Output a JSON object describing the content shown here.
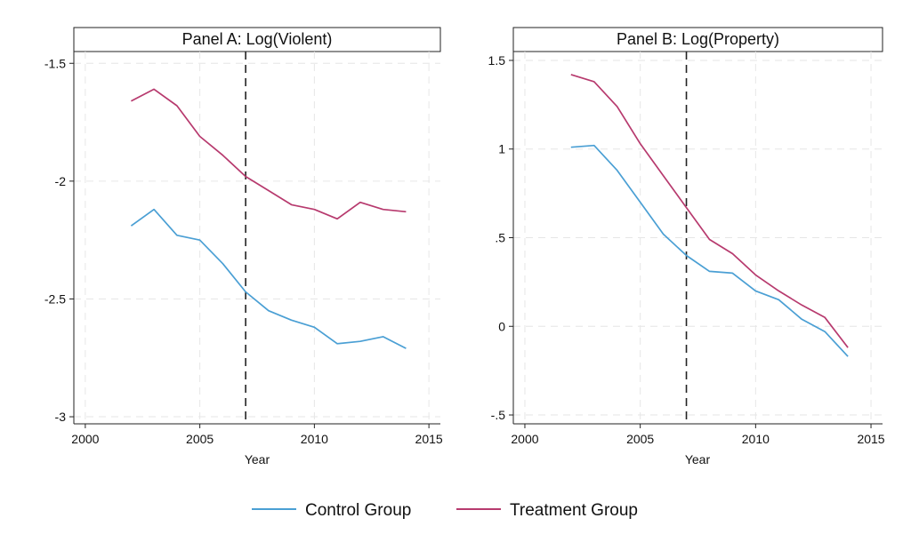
{
  "colors": {
    "control": "#4a9fd4",
    "treatment": "#b73a6e",
    "grid": "#e6e6e6",
    "axis": "#222222",
    "event_line": "#222222"
  },
  "legend": {
    "items": [
      {
        "label": "Control Group",
        "color_key": "control"
      },
      {
        "label": "Treatment Group",
        "color_key": "treatment"
      }
    ]
  },
  "chart_data": [
    {
      "type": "line",
      "title": "Panel A: Log(Violent)",
      "xlabel": "Year",
      "ylabel": "",
      "xlim": [
        1999.5,
        2015.5
      ],
      "ylim": [
        -3.03,
        -1.45
      ],
      "xticks": [
        2000,
        2005,
        2010,
        2015
      ],
      "yticks": [
        -3,
        -2.5,
        -2,
        -1.5
      ],
      "ytick_labels": [
        "-3",
        "-2.5",
        "-2",
        "-1.5"
      ],
      "vline": 2007,
      "grid": true,
      "legend_position": "bottom",
      "x": [
        2002,
        2003,
        2004,
        2005,
        2006,
        2007,
        2008,
        2009,
        2010,
        2011,
        2012,
        2013,
        2014
      ],
      "series": [
        {
          "name": "Control Group",
          "color_key": "control",
          "values": [
            -2.19,
            -2.12,
            -2.23,
            -2.25,
            -2.35,
            -2.47,
            -2.55,
            -2.59,
            -2.62,
            -2.69,
            -2.68,
            -2.66,
            -2.71
          ]
        },
        {
          "name": "Treatment Group",
          "color_key": "treatment",
          "values": [
            -1.66,
            -1.61,
            -1.68,
            -1.81,
            -1.89,
            -1.98,
            -2.04,
            -2.1,
            -2.12,
            -2.16,
            -2.09,
            -2.12,
            -2.13
          ]
        }
      ]
    },
    {
      "type": "line",
      "title": "Panel B: Log(Property)",
      "xlabel": "Year",
      "ylabel": "",
      "xlim": [
        1999.5,
        2015.5
      ],
      "ylim": [
        -0.55,
        1.55
      ],
      "xticks": [
        2000,
        2005,
        2010,
        2015
      ],
      "yticks": [
        -0.5,
        0,
        0.5,
        1,
        1.5
      ],
      "ytick_labels": [
        "-.5",
        "0",
        ".5",
        "1",
        "1.5"
      ],
      "vline": 2007,
      "grid": true,
      "legend_position": "bottom",
      "x": [
        2002,
        2003,
        2004,
        2005,
        2006,
        2007,
        2008,
        2009,
        2010,
        2011,
        2012,
        2013,
        2014
      ],
      "series": [
        {
          "name": "Control Group",
          "color_key": "control",
          "values": [
            1.01,
            1.02,
            0.88,
            0.7,
            0.52,
            0.4,
            0.31,
            0.3,
            0.2,
            0.15,
            0.04,
            -0.03,
            -0.17
          ]
        },
        {
          "name": "Treatment Group",
          "color_key": "treatment",
          "values": [
            1.42,
            1.38,
            1.24,
            1.03,
            0.85,
            0.67,
            0.49,
            0.41,
            0.29,
            0.2,
            0.12,
            0.05,
            -0.12
          ]
        }
      ]
    }
  ]
}
